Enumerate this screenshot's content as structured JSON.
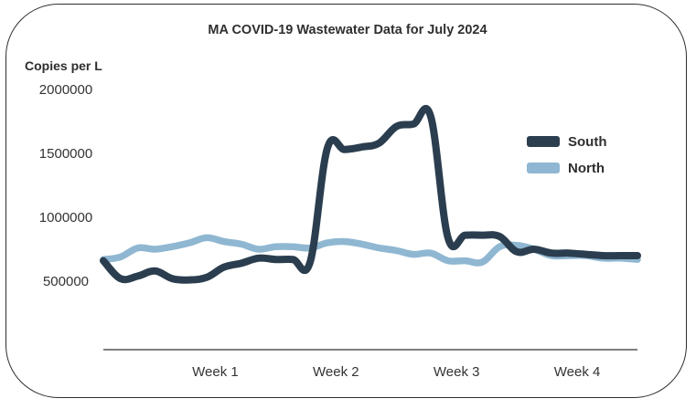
{
  "chart_data": {
    "type": "line",
    "title": "MA COVID-19 Wastewater Data for July 2024",
    "ylabel": "Copies per L",
    "xlabel": "",
    "ylim": [
      0,
      2000000
    ],
    "yticks": [
      500000,
      1000000,
      1500000,
      2000000
    ],
    "ytick_labels": [
      "500000",
      "1000000",
      "1500000",
      "2000000"
    ],
    "xtick_labels": [
      "Week 1",
      "Week 2",
      "Week 3",
      "Week 4"
    ],
    "xtick_positions": [
      6.5,
      13.5,
      20.5,
      27.5
    ],
    "x": [
      0,
      1,
      2,
      3,
      4,
      5,
      6,
      7,
      8,
      9,
      10,
      11,
      12,
      13,
      14,
      15,
      16,
      17,
      18,
      19,
      20,
      21,
      22,
      23,
      24,
      25,
      26,
      27,
      28,
      29,
      30,
      31
    ],
    "series": [
      {
        "name": "South",
        "color": "#2b3e4f",
        "values": [
          660000,
          520000,
          540000,
          580000,
          520000,
          510000,
          530000,
          610000,
          640000,
          680000,
          670000,
          670000,
          650000,
          1540000,
          1530000,
          1550000,
          1580000,
          1710000,
          1730000,
          1790000,
          840000,
          860000,
          860000,
          850000,
          730000,
          750000,
          720000,
          720000,
          710000,
          700000,
          700000,
          700000
        ]
      },
      {
        "name": "North",
        "color": "#8fb7d1",
        "values": [
          670000,
          690000,
          760000,
          750000,
          770000,
          800000,
          840000,
          810000,
          790000,
          750000,
          770000,
          770000,
          760000,
          800000,
          810000,
          790000,
          760000,
          740000,
          710000,
          720000,
          660000,
          660000,
          650000,
          770000,
          780000,
          750000,
          700000,
          700000,
          700000,
          680000,
          680000,
          670000
        ]
      }
    ],
    "legend_position": "right"
  }
}
